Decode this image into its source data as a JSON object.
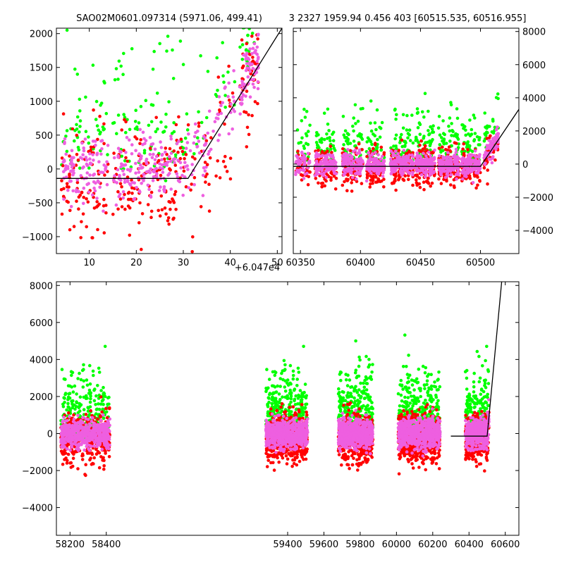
{
  "title_left": "SAO02M0601.097314 (5971.06, 499.41)",
  "title_right": "3 2327 1959.94 0.456 403 [60515.535, 60516.955]",
  "colors": {
    "red": "#ff0000",
    "green": "#00ff00",
    "pink": "#ee5fe0",
    "model": "#000000"
  },
  "chart_data": [
    {
      "id": "top_left",
      "type": "scatter",
      "xlim": [
        3,
        51
      ],
      "ylim": [
        -1250,
        2080
      ],
      "x_ticks": [
        10,
        20,
        30,
        40,
        50
      ],
      "x_tick_labels": [
        "10",
        "20",
        "30",
        "40",
        "50"
      ],
      "x_offset_label": "+6.047e4",
      "y_ticks": [
        -1000,
        -500,
        0,
        500,
        1000,
        1500,
        2000
      ],
      "y_tick_labels": [
        "−1000",
        "−500",
        "0",
        "500",
        "1000",
        "1500",
        "2000"
      ],
      "y_axis_side": "left",
      "model_line": [
        [
          3,
          -140
        ],
        [
          31,
          -140
        ],
        [
          51,
          2080
        ]
      ],
      "clusters": [
        {
          "x": [
            4,
            9
          ],
          "n": 60
        },
        {
          "x": [
            9,
            14
          ],
          "n": 55
        },
        {
          "x": [
            15,
            22
          ],
          "n": 80
        },
        {
          "x": [
            22,
            28
          ],
          "n": 70
        },
        {
          "x": [
            28,
            35
          ],
          "n": 55
        },
        {
          "x": [
            35,
            41
          ],
          "n": 35
        },
        {
          "x": [
            42,
            46
          ],
          "n": 70
        }
      ],
      "series_names": [],
      "ycenter": 0,
      "spread": 650,
      "rise_from": 31,
      "rise_slope": 111
    },
    {
      "id": "top_right",
      "type": "scatter",
      "xlim": [
        60344,
        60532
      ],
      "ylim": [
        -5400,
        8200
      ],
      "x_ticks": [
        60350,
        60400,
        60450,
        60500
      ],
      "x_tick_labels": [
        "60350",
        "60400",
        "60450",
        "60500"
      ],
      "y_ticks": [
        -4000,
        -2000,
        0,
        2000,
        4000,
        6000,
        8000
      ],
      "y_tick_labels": [
        "−4000",
        "−2000",
        "0",
        "2000",
        "4000",
        "6000",
        "8000"
      ],
      "y_axis_side": "right",
      "model_line": [
        [
          60344,
          -140
        ],
        [
          60500,
          -140
        ],
        [
          60532,
          3300
        ]
      ],
      "clusters": [
        {
          "x": [
            60346,
            60358
          ],
          "n": 50
        },
        {
          "x": [
            60362,
            60380
          ],
          "n": 110
        },
        {
          "x": [
            60385,
            60402
          ],
          "n": 120
        },
        {
          "x": [
            60405,
            60420
          ],
          "n": 120
        },
        {
          "x": [
            60425,
            60444
          ],
          "n": 150
        },
        {
          "x": [
            60446,
            60462
          ],
          "n": 140
        },
        {
          "x": [
            60465,
            60482
          ],
          "n": 140
        },
        {
          "x": [
            60484,
            60500
          ],
          "n": 130
        },
        {
          "x": [
            60503,
            60515
          ],
          "n": 70
        }
      ],
      "ycenter": 0,
      "spread": 900,
      "rise_from": 60500,
      "rise_slope": 107
    },
    {
      "id": "bottom",
      "type": "scatter",
      "xlim": [
        58125,
        60675
      ],
      "ylim": [
        -5500,
        8200
      ],
      "x_ticks": [
        58200,
        58400,
        59400,
        59600,
        59800,
        60000,
        60200,
        60400,
        60600
      ],
      "x_tick_labels": [
        "58200",
        "58400",
        "59400",
        "59600",
        "59800",
        "60000",
        "60200",
        "60400",
        "60600"
      ],
      "y_ticks": [
        -4000,
        -2000,
        0,
        2000,
        4000,
        6000,
        8000
      ],
      "y_tick_labels": [
        "−4000",
        "−2000",
        "0",
        "2000",
        "4000",
        "6000",
        "8000"
      ],
      "y_axis_side": "left",
      "model_line": [
        [
          60300,
          -140
        ],
        [
          60500,
          -140
        ],
        [
          60580,
          8200
        ]
      ],
      "clusters": [
        {
          "x": [
            58150,
            58420
          ],
          "n": 520
        },
        {
          "x": [
            59280,
            59510
          ],
          "n": 700
        },
        {
          "x": [
            59680,
            59870
          ],
          "n": 640
        },
        {
          "x": [
            60010,
            60240
          ],
          "n": 700
        },
        {
          "x": [
            60380,
            60510
          ],
          "n": 380
        }
      ],
      "ycenter": 0,
      "spread": 1000,
      "rise_from": 60500,
      "rise_slope": 100
    }
  ]
}
